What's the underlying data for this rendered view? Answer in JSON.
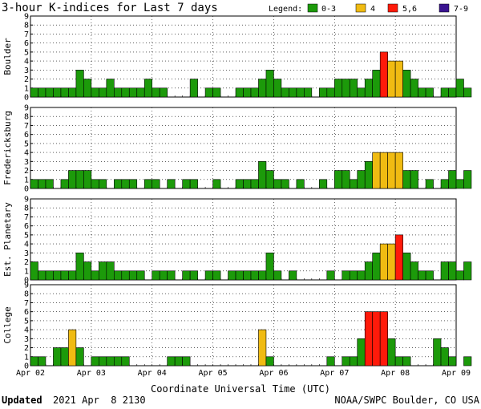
{
  "chart_data": {
    "type": "bar",
    "title": "3-hour K-indices for Last 7 days",
    "legend": {
      "label": "Legend:",
      "placement": "top-right",
      "entries": [
        {
          "label": "0-3",
          "color": "#1c9a0a"
        },
        {
          "label": "4",
          "color": "#f0bb12"
        },
        {
          "label": "5,6",
          "color": "#ff1a0a"
        },
        {
          "label": "7-9",
          "color": "#3a1490"
        }
      ]
    },
    "xlabel": "Coordinate Universal Time (UTC)",
    "x_ticks": [
      "Apr 02",
      "Apr 03",
      "Apr 04",
      "Apr 05",
      "Apr 06",
      "Apr 07",
      "Apr 08",
      "Apr 09"
    ],
    "y_ticks": [
      "0",
      "1",
      "2",
      "3",
      "4",
      "5",
      "6",
      "7",
      "8",
      "9"
    ],
    "ylim": [
      0,
      9
    ],
    "intervals_per_day": 8,
    "days": 7,
    "panels": [
      {
        "name": "Boulder",
        "values": [
          1,
          1,
          1,
          1,
          1,
          1,
          3,
          2,
          1,
          1,
          2,
          1,
          1,
          1,
          1,
          2,
          1,
          1,
          0,
          0,
          0,
          2,
          0,
          1,
          1,
          0,
          0,
          1,
          1,
          1,
          2,
          3,
          2,
          1,
          1,
          1,
          1,
          0,
          1,
          1,
          2,
          2,
          2,
          1,
          2,
          3,
          5,
          4,
          4,
          3,
          2,
          1,
          1,
          0,
          1,
          1,
          2,
          1
        ]
      },
      {
        "name": "Fredericksburg",
        "values": [
          1,
          1,
          1,
          0,
          1,
          2,
          2,
          2,
          1,
          1,
          0,
          1,
          1,
          1,
          0,
          1,
          1,
          0,
          1,
          0,
          1,
          1,
          0,
          0,
          1,
          0,
          0,
          1,
          1,
          1,
          3,
          2,
          1,
          1,
          0,
          1,
          0,
          0,
          1,
          0,
          2,
          2,
          1,
          2,
          3,
          4,
          4,
          4,
          4,
          2,
          2,
          0,
          1,
          0,
          1,
          2,
          1,
          2
        ]
      },
      {
        "name": "Est. Planetary",
        "values": [
          2,
          1,
          1,
          1,
          1,
          1,
          3,
          2,
          1,
          2,
          2,
          1,
          1,
          1,
          1,
          0,
          1,
          1,
          1,
          0,
          1,
          1,
          0,
          1,
          1,
          0,
          1,
          1,
          1,
          1,
          1,
          3,
          1,
          0,
          1,
          0,
          0,
          0,
          0,
          1,
          0,
          1,
          1,
          1,
          2,
          3,
          4,
          4,
          5,
          3,
          2,
          1,
          1,
          0,
          2,
          2,
          1,
          2
        ]
      },
      {
        "name": "College",
        "values": [
          1,
          1,
          0,
          2,
          2,
          4,
          2,
          0,
          1,
          1,
          1,
          1,
          1,
          0,
          0,
          0,
          0,
          0,
          1,
          1,
          1,
          0,
          0,
          0,
          0,
          0,
          0,
          0,
          0,
          0,
          4,
          1,
          0,
          0,
          0,
          0,
          0,
          0,
          0,
          1,
          0,
          1,
          1,
          3,
          6,
          6,
          6,
          3,
          1,
          1,
          0,
          0,
          0,
          3,
          2,
          1,
          0,
          1
        ]
      }
    ],
    "footer": {
      "updated_label": "Updated",
      "updated_value": "2021 Apr  8 2130",
      "credit": "NOAA/SWPC Boulder, CO USA"
    }
  }
}
